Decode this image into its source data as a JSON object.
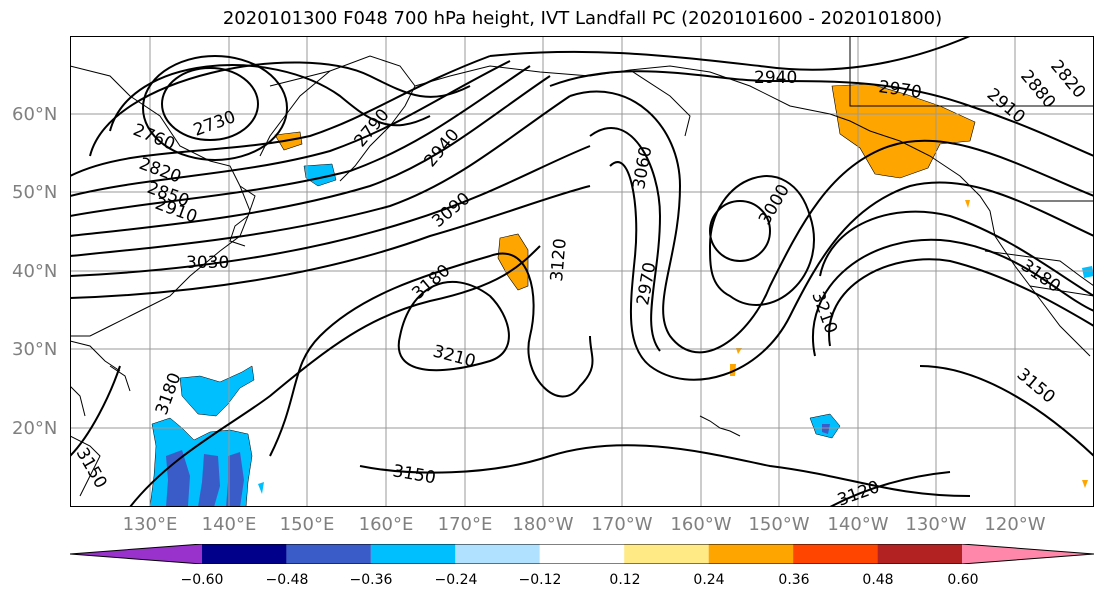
{
  "title": "2020101300 F048 700 hPa height, IVT Landfall PC (2020101600 - 2020101800)",
  "lat_labels": [
    "60°N",
    "50°N",
    "40°N",
    "30°N",
    "20°N"
  ],
  "lon_labels": [
    "130°E",
    "140°E",
    "150°E",
    "160°E",
    "170°E",
    "180°W",
    "170°W",
    "160°W",
    "150°W",
    "140°W",
    "130°W",
    "120°W"
  ],
  "contour_labels": [
    "2760",
    "2730",
    "2790",
    "2820",
    "2850",
    "2910",
    "3030",
    "2940",
    "3090",
    "3180",
    "3210",
    "3120",
    "3060",
    "2970",
    "3000",
    "2940",
    "2970",
    "2910",
    "2820",
    "2880",
    "3180",
    "3210",
    "3150",
    "3180",
    "3150",
    "3120",
    "3150"
  ],
  "colorbar": {
    "ticks": [
      "−0.60",
      "−0.48",
      "−0.36",
      "−0.24",
      "−0.12",
      "0.12",
      "0.24",
      "0.36",
      "0.48",
      "0.60"
    ],
    "colors": [
      "#9932cc",
      "#00008b",
      "#3a5cc8",
      "#00bfff",
      "#b0e2ff",
      "#ffffff",
      "#ffea86",
      "#ffa500",
      "#ff4500",
      "#b22222",
      "#ff88aa"
    ]
  },
  "fill_colors": {
    "positive": "#ffa500",
    "negative_light": "#00bfff",
    "negative_mid": "#3a5cc8"
  }
}
